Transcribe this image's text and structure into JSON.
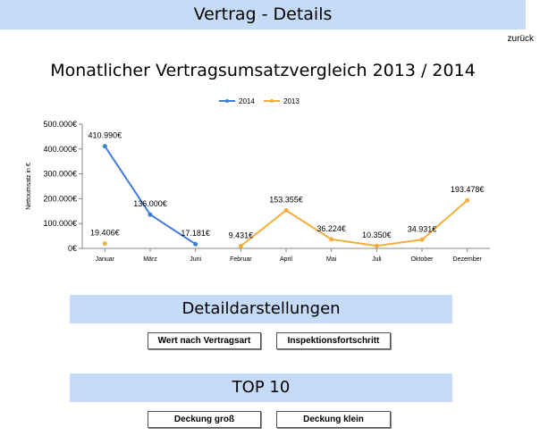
{
  "header": {
    "title": "Vertrag - Details",
    "back_label": "zurück"
  },
  "sections": {
    "details_title": "Detaildarstellungen",
    "details_buttons": [
      "Wert nach Vertragsart",
      "Inspektionsfortschritt"
    ],
    "top_title": "TOP 10",
    "top_buttons": [
      "Deckung groß",
      "Deckung klein"
    ]
  },
  "colors": {
    "banner": "#c6dbf7",
    "series_2014": "#3b7dd8",
    "series_2013": "#f5ad3c"
  },
  "chart_data": {
    "type": "line",
    "title": "Monatlicher Vertragsumsatzvergleich 2013 / 2014",
    "ylabel": "Nettoumsatz in €",
    "xlabel": "",
    "categories": [
      "Januar",
      "März",
      "Juni",
      "Februar",
      "April",
      "Mai",
      "Juli",
      "Oktober",
      "Dezember"
    ],
    "ylim": [
      0,
      500000
    ],
    "yticks": [
      "0€",
      "100.000€",
      "200.000€",
      "300.000€",
      "400.000€",
      "500.000€"
    ],
    "legend_position": "top-center",
    "grid": false,
    "series": [
      {
        "name": "2014",
        "values": [
          410990,
          136000,
          17181,
          null,
          null,
          null,
          null,
          null,
          null
        ],
        "labels": [
          "410.990€",
          "136.000€",
          "17.181€",
          "",
          "",
          "",
          "",
          "",
          ""
        ]
      },
      {
        "name": "2013",
        "values": [
          19406,
          null,
          null,
          9431,
          153355,
          36224,
          10350,
          34931,
          193478
        ],
        "labels": [
          "19.406€",
          "",
          "",
          "9.431€",
          "153.355€",
          "36.224€",
          "10.350€",
          "34.931€",
          "193.478€"
        ]
      }
    ]
  }
}
